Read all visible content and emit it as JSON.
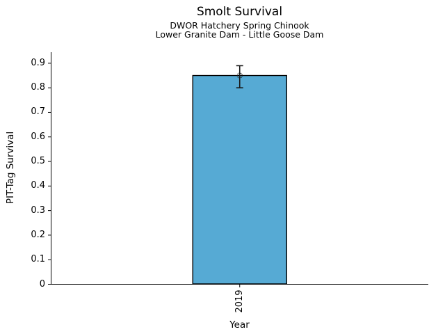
{
  "chart_data": {
    "type": "bar",
    "title": "Smolt Survival",
    "subtitles": [
      "DWOR Hatchery Spring Chinook",
      "Lower Granite Dam - Little Goose Dam"
    ],
    "xlabel": "Year",
    "ylabel": "PIT-Tag Survival",
    "categories": [
      "2019"
    ],
    "values": [
      0.85
    ],
    "error_low": [
      0.8
    ],
    "error_high": [
      0.89
    ],
    "ylim": [
      0,
      0.945
    ],
    "yticks": [
      0,
      0.1,
      0.2,
      0.3,
      0.4,
      0.5,
      0.6,
      0.7,
      0.8,
      0.9
    ],
    "ytick_labels": [
      "0",
      "0.1",
      "0.2",
      "0.3",
      "0.4",
      "0.5",
      "0.6",
      "0.7",
      "0.8",
      "0.9"
    ],
    "grid": false,
    "legend": null,
    "bar_color": "#56aad4",
    "bar_edge_color": "#000000",
    "error_color": "#1a1a1a",
    "axis_color": "#000000",
    "marker": "open-circle"
  }
}
